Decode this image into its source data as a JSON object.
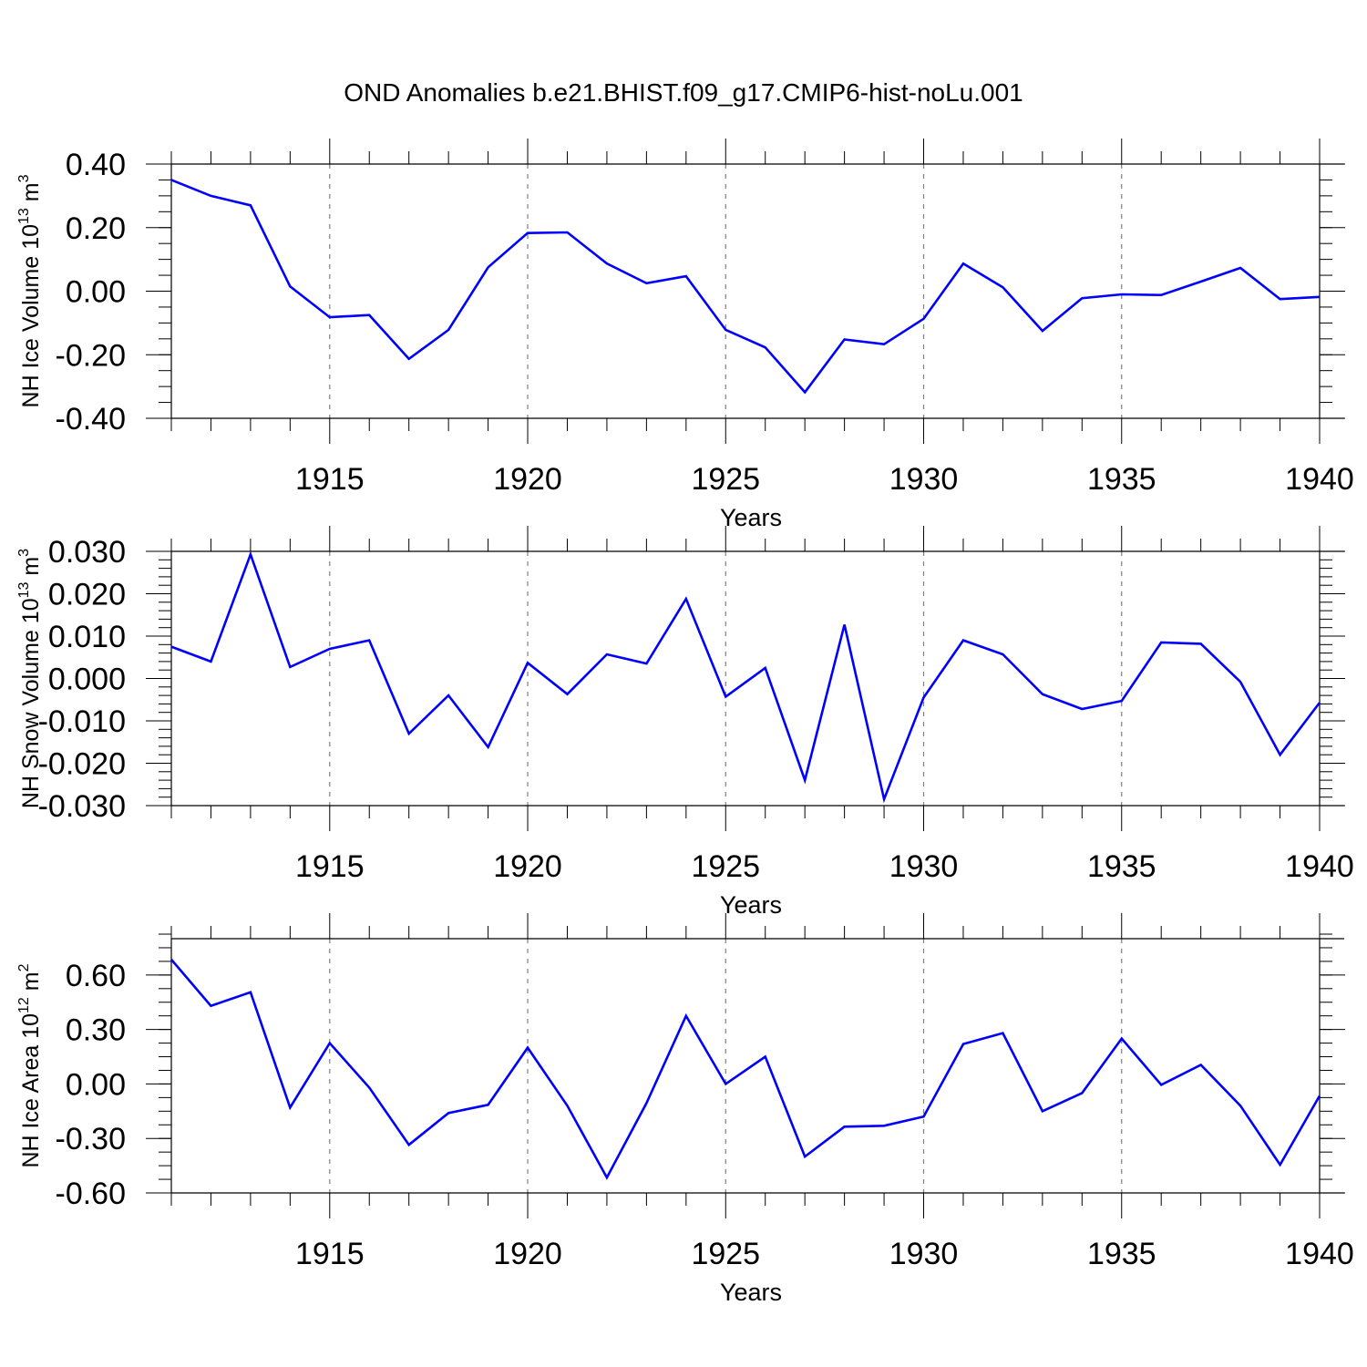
{
  "title": "OND Anomalies b.e21.BHIST.f09_g17.CMIP6-hist-noLu.001",
  "line_color": "#0000ff",
  "chart_data": [
    {
      "type": "line",
      "id": "ice-volume",
      "ylabel_prefix": "NH Ice Volume 10",
      "ylabel_exp": "13",
      "ylabel_unit": "m",
      "ylabel_unit_exp": "3",
      "xlabel": "Years",
      "xlim": [
        1911,
        1940
      ],
      "ylim": [
        -0.4,
        0.4
      ],
      "yticks": [
        -0.4,
        -0.2,
        0.0,
        0.2,
        0.4
      ],
      "ytick_labels": [
        "-0.40",
        "-0.20",
        "0.00",
        "0.20",
        "0.40"
      ],
      "yminor_step": 0.05,
      "xticks": [
        1915,
        1920,
        1925,
        1930,
        1935,
        1940
      ],
      "xtick_labels": [
        "1915",
        "1920",
        "1925",
        "1930",
        "1935",
        "1940"
      ],
      "x": [
        1911,
        1912,
        1913,
        1914,
        1915,
        1916,
        1917,
        1918,
        1919,
        1920,
        1921,
        1922,
        1923,
        1924,
        1925,
        1926,
        1927,
        1928,
        1929,
        1930,
        1931,
        1932,
        1933,
        1934,
        1935,
        1936,
        1937,
        1938,
        1939,
        1940
      ],
      "values": [
        0.35,
        0.3,
        0.27,
        0.015,
        -0.082,
        -0.075,
        -0.213,
        -0.122,
        0.075,
        0.183,
        0.185,
        0.087,
        0.025,
        0.047,
        -0.122,
        -0.177,
        -0.318,
        -0.152,
        -0.167,
        -0.087,
        0.087,
        0.012,
        -0.125,
        -0.022,
        -0.01,
        -0.012,
        0.03,
        0.073,
        -0.025,
        -0.018
      ]
    },
    {
      "type": "line",
      "id": "snow-volume",
      "ylabel_prefix": "NH Snow Volume 10",
      "ylabel_exp": "13",
      "ylabel_unit": "m",
      "ylabel_unit_exp": "3",
      "xlabel": "Years",
      "xlim": [
        1911,
        1940
      ],
      "ylim": [
        -0.03,
        0.03
      ],
      "yticks": [
        -0.03,
        -0.02,
        -0.01,
        0.0,
        0.01,
        0.02,
        0.03
      ],
      "ytick_labels": [
        "-0.030",
        "-0.020",
        "-0.010",
        "0.000",
        "0.010",
        "0.020",
        "0.030"
      ],
      "yminor_step": 0.002,
      "xticks": [
        1915,
        1920,
        1925,
        1930,
        1935,
        1940
      ],
      "xtick_labels": [
        "1915",
        "1920",
        "1925",
        "1930",
        "1935",
        "1940"
      ],
      "x": [
        1911,
        1912,
        1913,
        1914,
        1915,
        1916,
        1917,
        1918,
        1919,
        1920,
        1921,
        1922,
        1923,
        1924,
        1925,
        1926,
        1927,
        1928,
        1929,
        1930,
        1931,
        1932,
        1933,
        1934,
        1935,
        1936,
        1937,
        1938,
        1939,
        1940
      ],
      "values": [
        0.0075,
        0.004,
        0.0293,
        0.0027,
        0.007,
        0.009,
        -0.013,
        -0.004,
        -0.0162,
        0.0037,
        -0.0037,
        0.0057,
        0.0035,
        0.0188,
        -0.0043,
        0.0025,
        -0.024,
        0.0127,
        -0.0285,
        -0.0045,
        0.009,
        0.0057,
        -0.0037,
        -0.0072,
        -0.0053,
        0.0085,
        0.0082,
        -0.0008,
        -0.018,
        -0.0057
      ]
    },
    {
      "type": "line",
      "id": "ice-area",
      "ylabel_prefix": "NH Ice Area 10",
      "ylabel_exp": "12",
      "ylabel_unit": "m",
      "ylabel_unit_exp": "2",
      "xlabel": "Years",
      "xlim": [
        1911,
        1940
      ],
      "ylim": [
        -0.6,
        0.8
      ],
      "yticks": [
        -0.6,
        -0.3,
        0.0,
        0.3,
        0.6
      ],
      "ytick_labels": [
        "-0.60",
        "-0.30",
        "0.00",
        "0.30",
        "0.60"
      ],
      "yminor_step": 0.075,
      "xticks": [
        1915,
        1920,
        1925,
        1930,
        1935,
        1940
      ],
      "xtick_labels": [
        "1915",
        "1920",
        "1925",
        "1930",
        "1935",
        "1940"
      ],
      "x": [
        1911,
        1912,
        1913,
        1914,
        1915,
        1916,
        1917,
        1918,
        1919,
        1920,
        1921,
        1922,
        1923,
        1924,
        1925,
        1926,
        1927,
        1928,
        1929,
        1930,
        1931,
        1932,
        1933,
        1934,
        1935,
        1936,
        1937,
        1938,
        1939,
        1940
      ],
      "values": [
        0.685,
        0.43,
        0.505,
        -0.13,
        0.225,
        -0.02,
        -0.335,
        -0.16,
        -0.115,
        0.2,
        -0.12,
        -0.515,
        -0.105,
        0.375,
        0.0,
        0.15,
        -0.4,
        -0.235,
        -0.23,
        -0.18,
        0.22,
        0.28,
        -0.15,
        -0.05,
        0.25,
        -0.005,
        0.105,
        -0.12,
        -0.445,
        -0.065
      ]
    }
  ]
}
